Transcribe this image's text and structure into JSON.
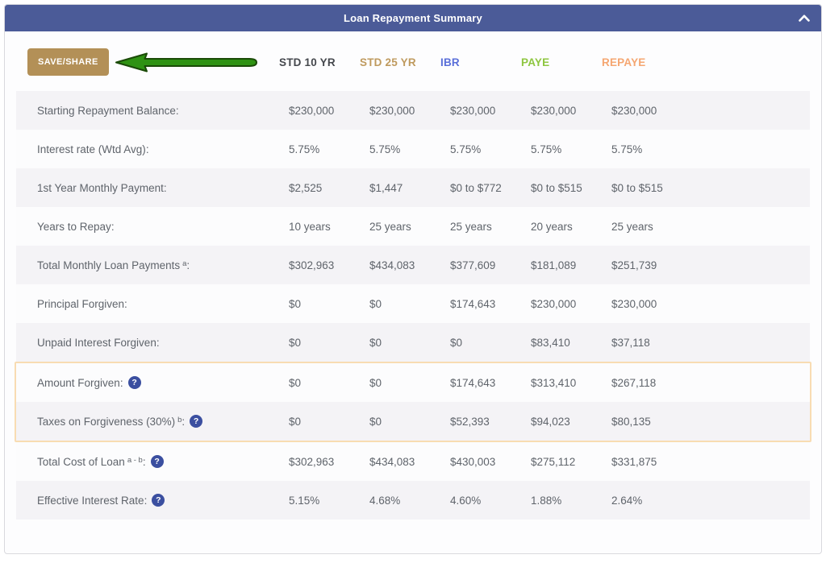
{
  "panel": {
    "title": "Loan Repayment Summary",
    "collapse_icon": "chevron-up"
  },
  "toolbar": {
    "save_share_label": "SAVE/SHARE",
    "arrow_icon": "green-arrow-pointing-left"
  },
  "columns": [
    {
      "label": "STD 10 YR",
      "color": "#45484d"
    },
    {
      "label": "STD 25 YR",
      "color": "#bf9a5e"
    },
    {
      "label": "IBR",
      "color": "#5a6fd9"
    },
    {
      "label": "PAYE",
      "color": "#8ec640"
    },
    {
      "label": "REPAYE",
      "color": "#f5a671"
    }
  ],
  "table": {
    "rows": [
      {
        "label": "Starting Repayment Balance",
        "sup": "",
        "help": false,
        "values": [
          "$230,000",
          "$230,000",
          "$230,000",
          "$230,000",
          "$230,000"
        ]
      },
      {
        "label": "Interest rate (Wtd Avg)",
        "sup": "",
        "help": false,
        "values": [
          "5.75%",
          "5.75%",
          "5.75%",
          "5.75%",
          "5.75%"
        ]
      },
      {
        "label": "1st Year Monthly Payment",
        "sup": "",
        "help": false,
        "values": [
          "$2,525",
          "$1,447",
          "$0 to $772",
          "$0 to $515",
          "$0 to $515"
        ]
      },
      {
        "label": "Years to Repay",
        "sup": "",
        "help": false,
        "values": [
          "10 years",
          "25 years",
          "25 years",
          "20 years",
          "25 years"
        ]
      },
      {
        "label": "Total Monthly Loan Payments",
        "sup": "a",
        "help": false,
        "values": [
          "$302,963",
          "$434,083",
          "$377,609",
          "$181,089",
          "$251,739"
        ]
      },
      {
        "label": "Principal Forgiven",
        "sup": "",
        "help": false,
        "values": [
          "$0",
          "$0",
          "$174,643",
          "$230,000",
          "$230,000"
        ]
      },
      {
        "label": "Unpaid Interest Forgiven",
        "sup": "",
        "help": false,
        "values": [
          "$0",
          "$0",
          "$0",
          "$83,410",
          "$37,118"
        ]
      },
      {
        "label": "Amount Forgiven",
        "sup": "",
        "help": true,
        "values": [
          "$0",
          "$0",
          "$174,643",
          "$313,410",
          "$267,118"
        ]
      },
      {
        "label": "Taxes on Forgiveness (30%)",
        "sup": "b",
        "help": true,
        "values": [
          "$0",
          "$0",
          "$52,393",
          "$94,023",
          "$80,135"
        ]
      },
      {
        "label": "Total Cost of Loan",
        "sup": "a - b",
        "help": true,
        "values": [
          "$302,963",
          "$434,083",
          "$430,003",
          "$275,112",
          "$331,875"
        ]
      },
      {
        "label": "Effective Interest Rate",
        "sup": "",
        "help": true,
        "values": [
          "5.15%",
          "4.68%",
          "4.60%",
          "1.88%",
          "2.64%"
        ]
      }
    ]
  },
  "highlight": {
    "row_start": 7,
    "row_end": 8,
    "border_color": "#f8dcb2"
  },
  "colors": {
    "titlebar": "#4b5b98",
    "save_share_button": "#b39057",
    "arrow_green": "#2f9213",
    "help_icon": "#3b4fa0",
    "stripe": "#f4f3f6"
  }
}
